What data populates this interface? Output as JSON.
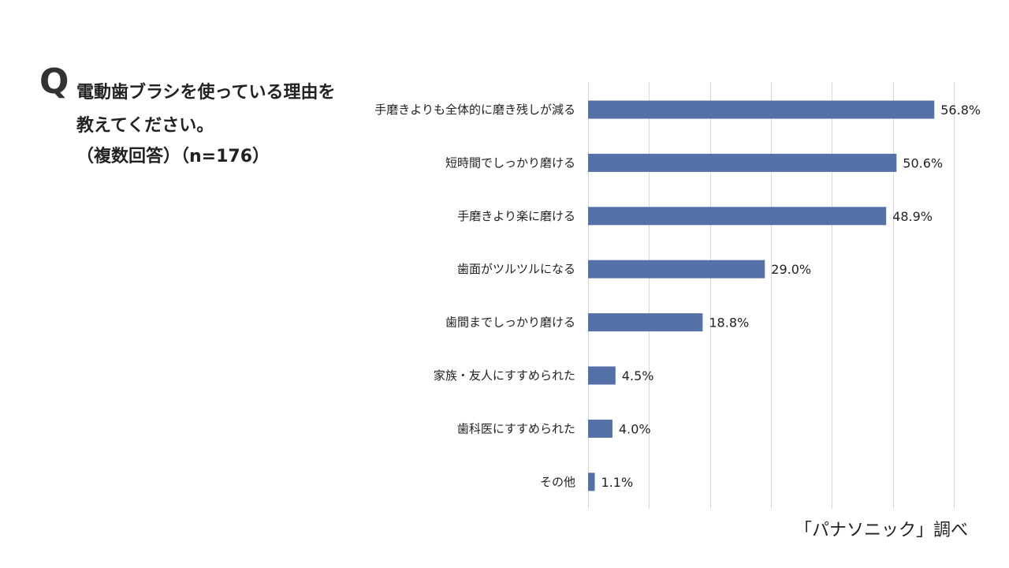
{
  "question": {
    "mark": "Q",
    "line1": "電動歯ブラシを使っている理由を",
    "line2": "教えてください。",
    "line3": "（複数回答）（n=176）"
  },
  "source": "「パナソニック」調べ",
  "colors": {
    "bar": "#5471a8",
    "grid": "#d9d9d9",
    "text": "#222222"
  },
  "chart_data": {
    "type": "bar",
    "orientation": "horizontal",
    "categories": [
      "手磨きよりも全体的に磨き残しが減る",
      "短時間でしっかり磨ける",
      "手磨きより楽に磨ける",
      "歯面がツルツルになる",
      "歯間までしっかり磨ける",
      "家族・友人にすすめられた",
      "歯科医にすすめられた",
      "その他"
    ],
    "values": [
      56.8,
      50.6,
      48.9,
      29.0,
      18.8,
      4.5,
      4.0,
      1.1
    ],
    "value_labels": [
      "56.8%",
      "50.6%",
      "48.9%",
      "29.0%",
      "18.8%",
      "4.5%",
      "4.0%",
      "1.1%"
    ],
    "xlim": [
      0,
      60
    ],
    "grid": true,
    "grid_step": 10,
    "legend": "none"
  }
}
